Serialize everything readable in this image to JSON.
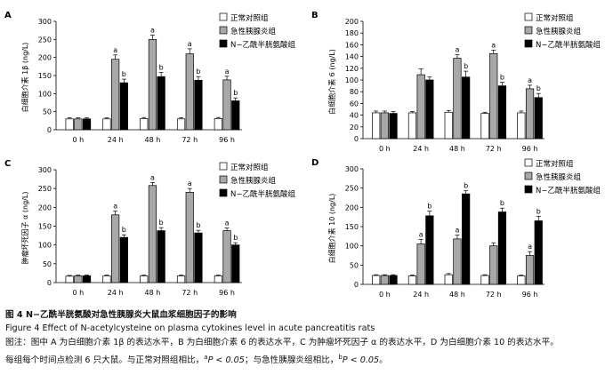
{
  "legend": {
    "control": "正常对照组",
    "pancreatitis": "急性胰腺炎组",
    "nac": "N−乙酰半胱氨酸组"
  },
  "colors": {
    "control": "#ffffff",
    "pancreatitis": "#a8a8a8",
    "nac": "#000000",
    "axis": "#000000"
  },
  "chart_data": [
    {
      "type": "bar",
      "panel": "A",
      "ylabel": "白细胞介素 1β (ng/L)",
      "ylim": [
        0,
        300
      ],
      "yticks": [
        0,
        50,
        100,
        150,
        200,
        250,
        300
      ],
      "categories": [
        "0 h",
        "24 h",
        "48 h",
        "72 h",
        "96 h"
      ],
      "series": [
        {
          "name": "正常对照组",
          "values": [
            30,
            30,
            31,
            30,
            31
          ],
          "errors": [
            3,
            3,
            3,
            3,
            3
          ]
        },
        {
          "name": "急性胰腺炎组",
          "values": [
            30,
            195,
            250,
            210,
            138
          ],
          "errors": [
            3,
            12,
            12,
            14,
            10
          ]
        },
        {
          "name": "N−乙酰半胱氨酸组",
          "values": [
            30,
            130,
            147,
            137,
            80
          ],
          "errors": [
            3,
            10,
            12,
            10,
            8
          ]
        }
      ],
      "annotations": [
        [
          "",
          "",
          ""
        ],
        [
          "",
          "a",
          "b"
        ],
        [
          "",
          "a",
          "b"
        ],
        [
          "",
          "a",
          "b"
        ],
        [
          "",
          "a",
          "b"
        ]
      ]
    },
    {
      "type": "bar",
      "panel": "B",
      "ylabel": "白细胞介素 6 (ng/L)",
      "ylim": [
        0,
        200
      ],
      "yticks": [
        0,
        20,
        40,
        60,
        80,
        100,
        120,
        140,
        160,
        180,
        200
      ],
      "categories": [
        "0 h",
        "24 h",
        "48 h",
        "72 h",
        "96 h"
      ],
      "series": [
        {
          "name": "正常对照组",
          "values": [
            44,
            44,
            45,
            43,
            44
          ],
          "errors": [
            3,
            2,
            3,
            2,
            3
          ]
        },
        {
          "name": "急性胰腺炎组",
          "values": [
            44,
            109,
            137,
            145,
            85
          ],
          "errors": [
            3,
            10,
            6,
            6,
            6
          ]
        },
        {
          "name": "N−乙酰半胱氨酸组",
          "values": [
            43,
            100,
            105,
            90,
            70
          ],
          "errors": [
            3,
            5,
            10,
            6,
            7
          ]
        }
      ],
      "annotations": [
        [
          "",
          "",
          ""
        ],
        [
          "",
          "",
          ""
        ],
        [
          "",
          "a",
          "b"
        ],
        [
          "",
          "a",
          "b"
        ],
        [
          "",
          "a",
          "b"
        ]
      ]
    },
    {
      "type": "bar",
      "panel": "C",
      "ylabel": "肿瘤坏死因子 α (ng/L)",
      "ylim": [
        0,
        300
      ],
      "yticks": [
        0,
        50,
        100,
        150,
        200,
        250,
        300
      ],
      "categories": [
        "0 h",
        "24 h",
        "48 h",
        "72 h",
        "96 h"
      ],
      "series": [
        {
          "name": "正常对照组",
          "values": [
            17,
            18,
            18,
            18,
            18
          ],
          "errors": [
            2,
            2,
            2,
            2,
            2
          ]
        },
        {
          "name": "急性胰腺炎组",
          "values": [
            18,
            180,
            258,
            240,
            138
          ],
          "errors": [
            2,
            10,
            8,
            10,
            7
          ]
        },
        {
          "name": "N−乙酰半胱氨酸组",
          "values": [
            18,
            120,
            138,
            132,
            100
          ],
          "errors": [
            2,
            7,
            8,
            7,
            6
          ]
        }
      ],
      "annotations": [
        [
          "",
          "",
          ""
        ],
        [
          "",
          "a",
          "b"
        ],
        [
          "",
          "a",
          "b"
        ],
        [
          "",
          "a",
          "b"
        ],
        [
          "",
          "a",
          "b"
        ]
      ]
    },
    {
      "type": "bar",
      "panel": "D",
      "ylabel": "白细胞介素 10 (ng/L)",
      "ylim": [
        0,
        300
      ],
      "yticks": [
        0,
        50,
        100,
        150,
        200,
        250,
        300
      ],
      "categories": [
        "0 h",
        "24 h",
        "48 h",
        "72 h",
        "96 h"
      ],
      "series": [
        {
          "name": "正常对照组",
          "values": [
            23,
            22,
            25,
            23,
            22
          ],
          "errors": [
            2,
            2,
            3,
            2,
            2
          ]
        },
        {
          "name": "急性胰腺炎组",
          "values": [
            23,
            105,
            118,
            100,
            75
          ],
          "errors": [
            2,
            12,
            10,
            8,
            10
          ]
        },
        {
          "name": "N−乙酰半胱氨酸组",
          "values": [
            23,
            178,
            235,
            188,
            165
          ],
          "errors": [
            2,
            12,
            8,
            10,
            12
          ]
        }
      ],
      "annotations": [
        [
          "",
          "",
          ""
        ],
        [
          "",
          "a",
          "b"
        ],
        [
          "",
          "a",
          "b"
        ],
        [
          "",
          "",
          "b"
        ],
        [
          "",
          "a",
          "b"
        ]
      ]
    }
  ],
  "caption": {
    "title_cn": "图 4   N−乙酰半胱氨酸对急性胰腺炎大鼠血浆细胞因子的影响",
    "title_en": "Figure 4   Effect of N-acetylcysteine on plasma cytokines level in acute pancreatitis rats",
    "note_line1": "图注：图中 A 为白细胞介素 1β 的表达水平，B 为白细胞介素 6 的表达水平，C 为肿瘤坏死因子 α 的表达水平，D 为白细胞介素 10 的表达水平。",
    "note_line2_a": "每组每个时间点检测 6 只大鼠。与正常对照组相比，",
    "sup_a": "a",
    "p_text": "P < 0.05",
    "note_line2_b": "；与急性胰腺炎组相比，",
    "sup_b": "b",
    "note_line2_c": "。"
  }
}
